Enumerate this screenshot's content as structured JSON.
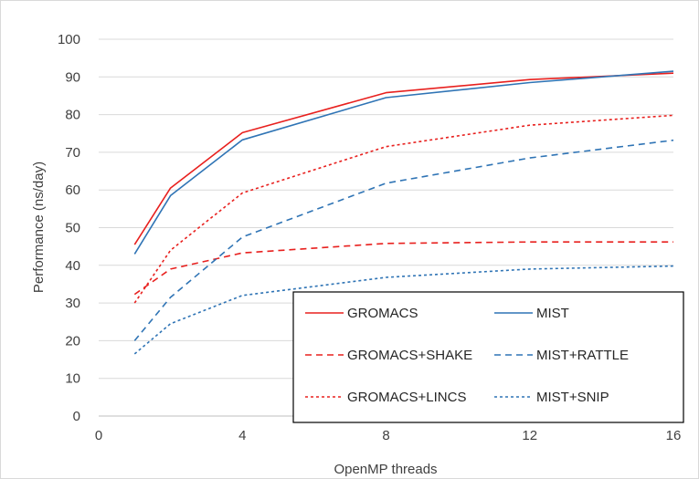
{
  "chart_data": {
    "type": "line",
    "xlabel": "OpenMP threads",
    "ylabel": "Performance (ns/day)",
    "xlim": [
      0,
      16
    ],
    "ylim": [
      0,
      100
    ],
    "x_ticks": [
      0,
      4,
      8,
      12,
      16
    ],
    "y_ticks": [
      0,
      10,
      20,
      30,
      40,
      50,
      60,
      70,
      80,
      90,
      100
    ],
    "grid": "horizontal",
    "legend_position": "bottom-right",
    "series": [
      {
        "name": "GROMACS",
        "color": "#e8201e",
        "dash": "solid",
        "x": [
          1,
          2,
          4,
          8,
          12,
          16
        ],
        "y": [
          45.5,
          60.5,
          75.2,
          85.8,
          89.3,
          91.0
        ]
      },
      {
        "name": "MIST",
        "color": "#2f74b5",
        "dash": "solid",
        "x": [
          1,
          2,
          4,
          8,
          12,
          16
        ],
        "y": [
          43.0,
          58.5,
          73.3,
          84.5,
          88.5,
          91.5
        ]
      },
      {
        "name": "GROMACS+SHAKE",
        "color": "#e8201e",
        "dash": "dashed",
        "x": [
          1,
          2,
          4,
          8,
          12,
          16
        ],
        "y": [
          32.3,
          39.0,
          43.3,
          45.8,
          46.2,
          46.2
        ]
      },
      {
        "name": "MIST+RATTLE",
        "color": "#2f74b5",
        "dash": "dashed",
        "x": [
          1,
          2,
          4,
          8,
          12,
          16
        ],
        "y": [
          20.0,
          31.5,
          47.5,
          61.8,
          68.5,
          73.2
        ]
      },
      {
        "name": "GROMACS+LINCS",
        "color": "#e8201e",
        "dash": "dotted",
        "x": [
          1,
          2,
          4,
          8,
          12,
          16
        ],
        "y": [
          30.0,
          44.0,
          59.2,
          71.5,
          77.2,
          79.8
        ]
      },
      {
        "name": "MIST+SNIP",
        "color": "#2f74b5",
        "dash": "dotted",
        "x": [
          1,
          2,
          4,
          8,
          12,
          16
        ],
        "y": [
          16.5,
          24.5,
          32.0,
          36.8,
          39.0,
          39.8
        ]
      }
    ]
  }
}
